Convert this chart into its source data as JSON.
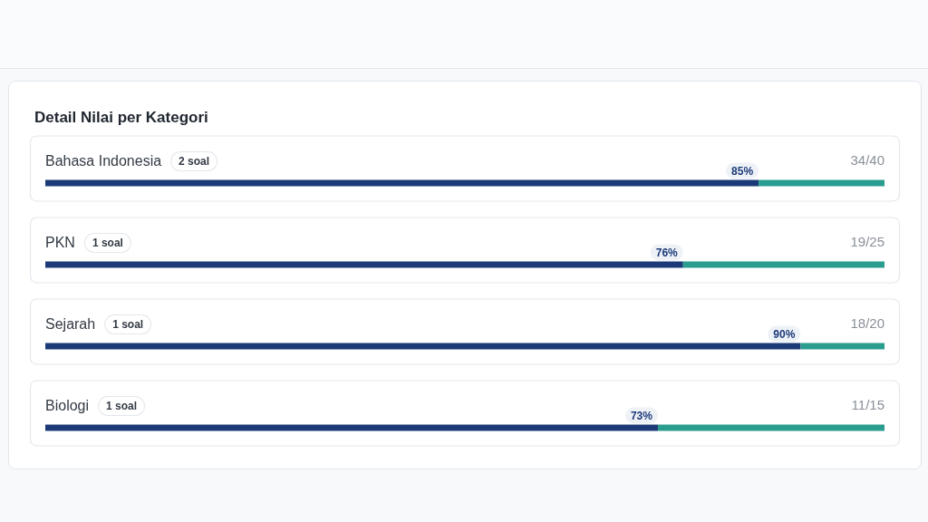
{
  "chart_data": {
    "type": "bar",
    "orientation": "horizontal",
    "stacked": true,
    "title": "Detail Nilai per Kategori",
    "categories": [
      "Bahasa Indonesia",
      "PKN",
      "Sejarah",
      "Biologi"
    ],
    "series": [
      {
        "color": "#1c3a78",
        "values": [
          85,
          76,
          90,
          73
        ],
        "value_labels": [
          "85%",
          "76%",
          "90%",
          "73%"
        ]
      },
      {
        "color": "#2a9d8f",
        "values": [
          15,
          24,
          10,
          27
        ]
      }
    ],
    "annotations": [
      "2 soal",
      "34/40",
      "1 soal",
      "19/25",
      "1 soal",
      "18/20",
      "1 soal",
      "11/15"
    ]
  }
}
